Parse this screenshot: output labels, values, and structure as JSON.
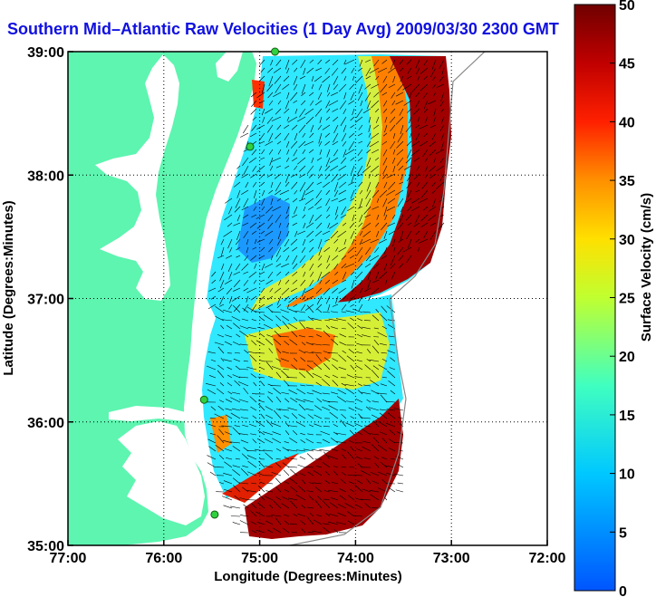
{
  "title": "Southern Mid–Atlantic Raw Velocities (1 Day Avg) 2009/03/30 2300 GMT",
  "x_axis": {
    "label": "Longitude (Degrees:Minutes)",
    "ticks": [
      "77:00",
      "76:00",
      "75:00",
      "74:00",
      "73:00",
      "72:00"
    ],
    "values": [
      -77,
      -76,
      -75,
      -74,
      -73,
      -72
    ]
  },
  "y_axis": {
    "label": "Latitude (Degrees:Minutes)",
    "ticks": [
      "39:00",
      "38:00",
      "37:00",
      "36:00",
      "35:00"
    ],
    "values": [
      39,
      38,
      37,
      36,
      35
    ]
  },
  "colorbar": {
    "label": "Surface Velocity (cm/s)",
    "ticks": [
      "50",
      "45",
      "40",
      "35",
      "30",
      "25",
      "20",
      "15",
      "10",
      "5",
      "0"
    ],
    "min": 0,
    "max": 50
  },
  "colors": {
    "land": "#5df5b0",
    "title": "#1010e0",
    "site_marker": "#30d040"
  },
  "grid": "dotted",
  "hf_radar_sites": [
    {
      "lon": -74.84,
      "lat": 39.0
    },
    {
      "lon": -75.1,
      "lat": 38.23
    },
    {
      "lon": -75.58,
      "lat": 36.18
    },
    {
      "lon": -75.47,
      "lat": 35.25
    }
  ]
}
